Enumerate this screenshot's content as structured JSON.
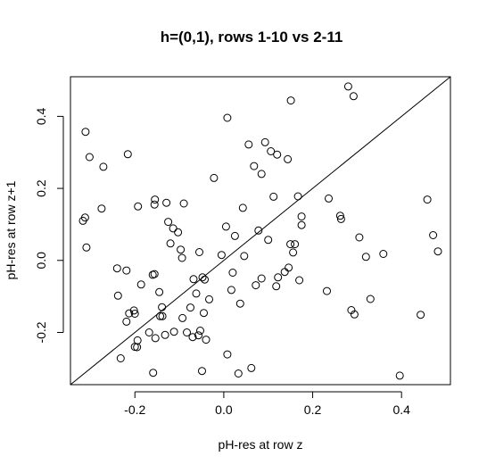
{
  "chart_data": {
    "type": "scatter",
    "title": "h=(0,1), rows 1-10 vs 2-11",
    "xlabel": "pH-res at row z",
    "ylabel": "pH-res at row z+1",
    "xlim": [
      -0.345,
      0.51
    ],
    "ylim": [
      -0.345,
      0.51
    ],
    "xticks": [
      "-0.2",
      "0.0",
      "0.2",
      "0.4"
    ],
    "yticks": [
      "-0.2",
      "0.0",
      "0.2",
      "0.4"
    ],
    "tick_values": [
      -0.2,
      0.0,
      0.2,
      0.4
    ],
    "reference_line": "y = x",
    "grid": false,
    "points": [
      [
        -0.311,
        0.357
      ],
      [
        -0.302,
        0.287
      ],
      [
        -0.271,
        0.26
      ],
      [
        -0.216,
        0.295
      ],
      [
        -0.312,
        0.119
      ],
      [
        -0.317,
        0.11
      ],
      [
        -0.309,
        0.036
      ],
      [
        -0.275,
        0.144
      ],
      [
        -0.24,
        -0.022
      ],
      [
        -0.238,
        -0.098
      ],
      [
        -0.232,
        -0.272
      ],
      [
        -0.219,
        -0.028
      ],
      [
        -0.219,
        -0.17
      ],
      [
        -0.213,
        -0.147
      ],
      [
        -0.202,
        -0.139
      ],
      [
        -0.2,
        -0.148
      ],
      [
        -0.2,
        -0.24
      ],
      [
        -0.195,
        -0.241
      ],
      [
        -0.194,
        -0.222
      ],
      [
        -0.193,
        0.15
      ],
      [
        -0.186,
        -0.067
      ],
      [
        -0.168,
        -0.2
      ],
      [
        -0.16,
        -0.04
      ],
      [
        -0.159,
        -0.312
      ],
      [
        -0.156,
        -0.038
      ],
      [
        -0.156,
        0.155
      ],
      [
        -0.155,
        0.169
      ],
      [
        -0.154,
        -0.216
      ],
      [
        -0.145,
        -0.088
      ],
      [
        -0.143,
        -0.155
      ],
      [
        -0.139,
        -0.13
      ],
      [
        -0.138,
        -0.155
      ],
      [
        -0.132,
        -0.207
      ],
      [
        -0.129,
        0.16
      ],
      [
        -0.125,
        0.107
      ],
      [
        -0.12,
        0.047
      ],
      [
        -0.114,
        0.089
      ],
      [
        -0.112,
        -0.198
      ],
      [
        -0.103,
        0.078
      ],
      [
        -0.097,
        0.03
      ],
      [
        -0.094,
        0.007
      ],
      [
        -0.093,
        -0.16
      ],
      [
        -0.09,
        0.158
      ],
      [
        -0.083,
        -0.2
      ],
      [
        -0.075,
        -0.131
      ],
      [
        -0.07,
        -0.213
      ],
      [
        -0.068,
        -0.052
      ],
      [
        -0.062,
        -0.092
      ],
      [
        -0.057,
        -0.208
      ],
      [
        -0.055,
        0.023
      ],
      [
        -0.053,
        -0.195
      ],
      [
        -0.049,
        -0.307
      ],
      [
        -0.048,
        -0.047
      ],
      [
        -0.045,
        -0.146
      ],
      [
        -0.043,
        -0.053
      ],
      [
        -0.04,
        -0.22
      ],
      [
        -0.033,
        -0.108
      ],
      [
        -0.022,
        0.229
      ],
      [
        -0.005,
        0.015
      ],
      [
        0.005,
        0.094
      ],
      [
        0.008,
        0.396
      ],
      [
        0.008,
        -0.261
      ],
      [
        0.017,
        -0.082
      ],
      [
        0.02,
        -0.034
      ],
      [
        0.025,
        0.068
      ],
      [
        0.033,
        -0.314
      ],
      [
        0.037,
        -0.12
      ],
      [
        0.043,
        0.146
      ],
      [
        0.046,
        0.012
      ],
      [
        0.056,
        0.322
      ],
      [
        0.062,
        -0.299
      ],
      [
        0.068,
        0.262
      ],
      [
        0.072,
        -0.069
      ],
      [
        0.078,
        0.083
      ],
      [
        0.085,
        0.24
      ],
      [
        0.085,
        -0.05
      ],
      [
        0.093,
        0.328
      ],
      [
        0.1,
        0.057
      ],
      [
        0.106,
        0.303
      ],
      [
        0.112,
        0.177
      ],
      [
        0.118,
        -0.072
      ],
      [
        0.12,
        0.294
      ],
      [
        0.122,
        -0.047
      ],
      [
        0.137,
        -0.032
      ],
      [
        0.144,
        0.281
      ],
      [
        0.146,
        -0.02
      ],
      [
        0.15,
        0.045
      ],
      [
        0.151,
        0.444
      ],
      [
        0.156,
        0.022
      ],
      [
        0.16,
        0.045
      ],
      [
        0.167,
        0.178
      ],
      [
        0.17,
        -0.055
      ],
      [
        0.175,
        0.122
      ],
      [
        0.175,
        0.098
      ],
      [
        0.232,
        -0.085
      ],
      [
        0.236,
        0.172
      ],
      [
        0.262,
        0.124
      ],
      [
        0.264,
        0.115
      ],
      [
        0.28,
        0.483
      ],
      [
        0.287,
        -0.138
      ],
      [
        0.292,
        0.456
      ],
      [
        0.294,
        -0.15
      ],
      [
        0.305,
        0.064
      ],
      [
        0.32,
        0.01
      ],
      [
        0.33,
        -0.107
      ],
      [
        0.359,
        0.018
      ],
      [
        0.396,
        -0.32
      ],
      [
        0.443,
        -0.151
      ],
      [
        0.458,
        0.169
      ],
      [
        0.471,
        0.07
      ],
      [
        0.482,
        0.025
      ]
    ]
  }
}
